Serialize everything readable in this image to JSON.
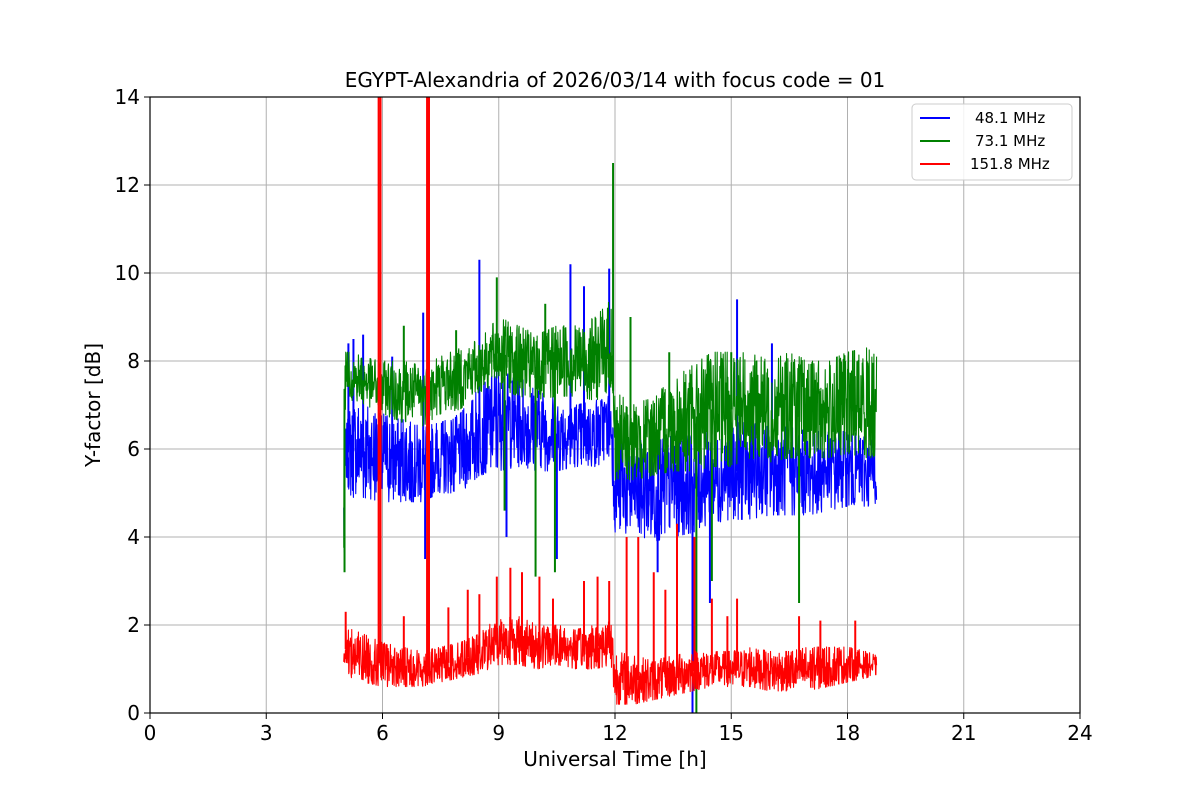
{
  "chart_data": {
    "type": "line",
    "title": "EGYPT-Alexandria of 2026/03/14 with focus code = 01",
    "xlabel": "Universal Time [h]",
    "ylabel": "Y-factor [dB]",
    "xlim": [
      0,
      24
    ],
    "ylim": [
      0,
      14
    ],
    "xticks": [
      0,
      3,
      6,
      9,
      12,
      15,
      18,
      21,
      24
    ],
    "yticks": [
      0,
      2,
      4,
      6,
      8,
      10,
      12,
      14
    ],
    "grid": true,
    "legend_position": "top-right",
    "series": [
      {
        "name": "48.1 MHz",
        "color": "#0000ff",
        "x": [
          5.0,
          5.05,
          5.2,
          5.5,
          6.0,
          6.5,
          7.0,
          7.5,
          8.0,
          8.5,
          9.0,
          9.5,
          10.0,
          10.5,
          11.0,
          11.5,
          11.9,
          12.0,
          12.5,
          13.0,
          13.5,
          14.0,
          14.5,
          15.0,
          15.5,
          16.0,
          16.5,
          17.0,
          17.5,
          18.0,
          18.5,
          18.75
        ],
        "low": [
          2.5,
          5.3,
          4.9,
          4.9,
          4.8,
          4.8,
          4.8,
          5.0,
          5.0,
          5.4,
          5.5,
          5.6,
          5.5,
          5.5,
          5.6,
          5.6,
          5.8,
          4.0,
          3.9,
          3.9,
          4.0,
          4.1,
          4.3,
          4.4,
          4.4,
          4.5,
          4.5,
          4.5,
          4.6,
          4.7,
          4.7,
          4.7
        ],
        "high": [
          5.8,
          6.5,
          7.0,
          7.0,
          6.8,
          6.7,
          6.5,
          6.6,
          6.8,
          7.4,
          7.8,
          7.6,
          7.5,
          7.2,
          7.0,
          7.1,
          7.4,
          6.4,
          6.2,
          6.2,
          6.3,
          6.3,
          6.4,
          6.6,
          6.6,
          6.5,
          6.5,
          6.4,
          6.4,
          6.4,
          6.3,
          6.2
        ],
        "spikes": [
          [
            5.12,
            8.4
          ],
          [
            5.25,
            8.5
          ],
          [
            5.5,
            8.6
          ],
          [
            6.25,
            8.1
          ],
          [
            7.05,
            9.1
          ],
          [
            7.1,
            3.5
          ],
          [
            8.5,
            10.3
          ],
          [
            9.2,
            4.0
          ],
          [
            10.5,
            3.5
          ],
          [
            10.85,
            10.2
          ],
          [
            11.2,
            9.7
          ],
          [
            11.85,
            10.1
          ],
          [
            13.1,
            3.2
          ],
          [
            14.0,
            0.0
          ],
          [
            14.45,
            2.5
          ],
          [
            15.15,
            9.4
          ],
          [
            16.05,
            8.4
          ]
        ]
      },
      {
        "name": "73.1 MHz",
        "color": "#008000",
        "x": [
          5.0,
          5.05,
          5.2,
          5.5,
          6.0,
          6.5,
          7.0,
          7.5,
          8.0,
          8.5,
          9.0,
          9.5,
          10.0,
          10.5,
          11.0,
          11.5,
          11.9,
          12.0,
          12.5,
          13.0,
          13.5,
          14.0,
          14.5,
          15.0,
          15.5,
          16.0,
          16.5,
          17.0,
          17.5,
          18.0,
          18.5,
          18.75
        ],
        "low": [
          3.2,
          7.5,
          7.1,
          7.0,
          6.8,
          6.6,
          6.5,
          6.8,
          6.9,
          7.3,
          7.4,
          7.2,
          7.1,
          7.2,
          7.2,
          7.1,
          7.3,
          5.3,
          5.3,
          5.4,
          5.5,
          5.5,
          5.6,
          5.6,
          5.8,
          5.7,
          5.8,
          5.8,
          5.8,
          5.9,
          5.8,
          5.8
        ],
        "high": [
          7.8,
          8.2,
          8.2,
          8.1,
          8.0,
          8.0,
          7.9,
          8.1,
          8.3,
          8.5,
          9.0,
          8.8,
          8.6,
          8.8,
          8.8,
          9.0,
          9.4,
          7.3,
          7.0,
          7.2,
          7.6,
          7.9,
          8.2,
          8.2,
          8.2,
          8.0,
          8.2,
          8.0,
          8.0,
          8.2,
          8.3,
          8.1
        ],
        "spikes": [
          [
            5.02,
            3.2
          ],
          [
            6.55,
            8.8
          ],
          [
            7.9,
            8.7
          ],
          [
            8.95,
            9.9
          ],
          [
            9.15,
            4.6
          ],
          [
            9.95,
            3.1
          ],
          [
            10.2,
            9.3
          ],
          [
            10.45,
            3.2
          ],
          [
            11.95,
            12.5
          ],
          [
            12.4,
            9.0
          ],
          [
            13.4,
            8.2
          ],
          [
            14.1,
            0.0
          ],
          [
            14.5,
            3.0
          ],
          [
            15.0,
            8.2
          ],
          [
            16.75,
            2.5
          ]
        ]
      },
      {
        "name": "151.8 MHz",
        "color": "#ff0000",
        "x": [
          5.0,
          5.05,
          5.2,
          5.5,
          6.0,
          6.5,
          7.0,
          7.5,
          8.0,
          8.5,
          9.0,
          9.5,
          10.0,
          10.5,
          11.0,
          11.5,
          11.9,
          12.0,
          12.5,
          13.0,
          13.5,
          14.0,
          14.5,
          15.0,
          15.5,
          16.0,
          16.5,
          17.0,
          17.5,
          18.0,
          18.5,
          18.75
        ],
        "low": [
          1.1,
          1.0,
          0.8,
          0.7,
          0.6,
          0.6,
          0.6,
          0.7,
          0.8,
          0.9,
          1.1,
          1.1,
          1.0,
          1.1,
          1.0,
          1.0,
          1.1,
          0.2,
          0.2,
          0.3,
          0.4,
          0.5,
          0.6,
          0.6,
          0.6,
          0.5,
          0.5,
          0.5,
          0.6,
          0.7,
          0.8,
          0.8
        ],
        "high": [
          2.1,
          1.9,
          1.9,
          1.8,
          1.6,
          1.5,
          1.4,
          1.5,
          1.6,
          1.8,
          2.2,
          2.2,
          2.0,
          2.0,
          1.9,
          2.0,
          2.2,
          1.4,
          1.3,
          1.2,
          1.3,
          1.4,
          1.4,
          1.4,
          1.5,
          1.4,
          1.4,
          1.5,
          1.5,
          1.5,
          1.4,
          1.3
        ],
        "spikes": [
          [
            5.05,
            2.3
          ],
          [
            5.9,
            14.0
          ],
          [
            5.95,
            14.0
          ],
          [
            6.55,
            2.2
          ],
          [
            7.15,
            14.0
          ],
          [
            7.2,
            14.0
          ],
          [
            7.7,
            2.4
          ],
          [
            8.2,
            2.8
          ],
          [
            8.5,
            2.7
          ],
          [
            8.95,
            3.1
          ],
          [
            9.3,
            3.3
          ],
          [
            9.6,
            3.2
          ],
          [
            10.05,
            3.1
          ],
          [
            10.4,
            2.6
          ],
          [
            11.2,
            3.0
          ],
          [
            11.55,
            3.1
          ],
          [
            11.85,
            3.0
          ],
          [
            12.3,
            4.0
          ],
          [
            12.6,
            4.0
          ],
          [
            13.0,
            3.2
          ],
          [
            13.3,
            2.8
          ],
          [
            13.6,
            4.3
          ],
          [
            14.05,
            4.0
          ],
          [
            14.5,
            2.6
          ],
          [
            14.9,
            2.2
          ],
          [
            15.15,
            2.6
          ],
          [
            16.75,
            2.2
          ],
          [
            17.3,
            2.1
          ],
          [
            18.2,
            2.1
          ]
        ]
      }
    ]
  }
}
